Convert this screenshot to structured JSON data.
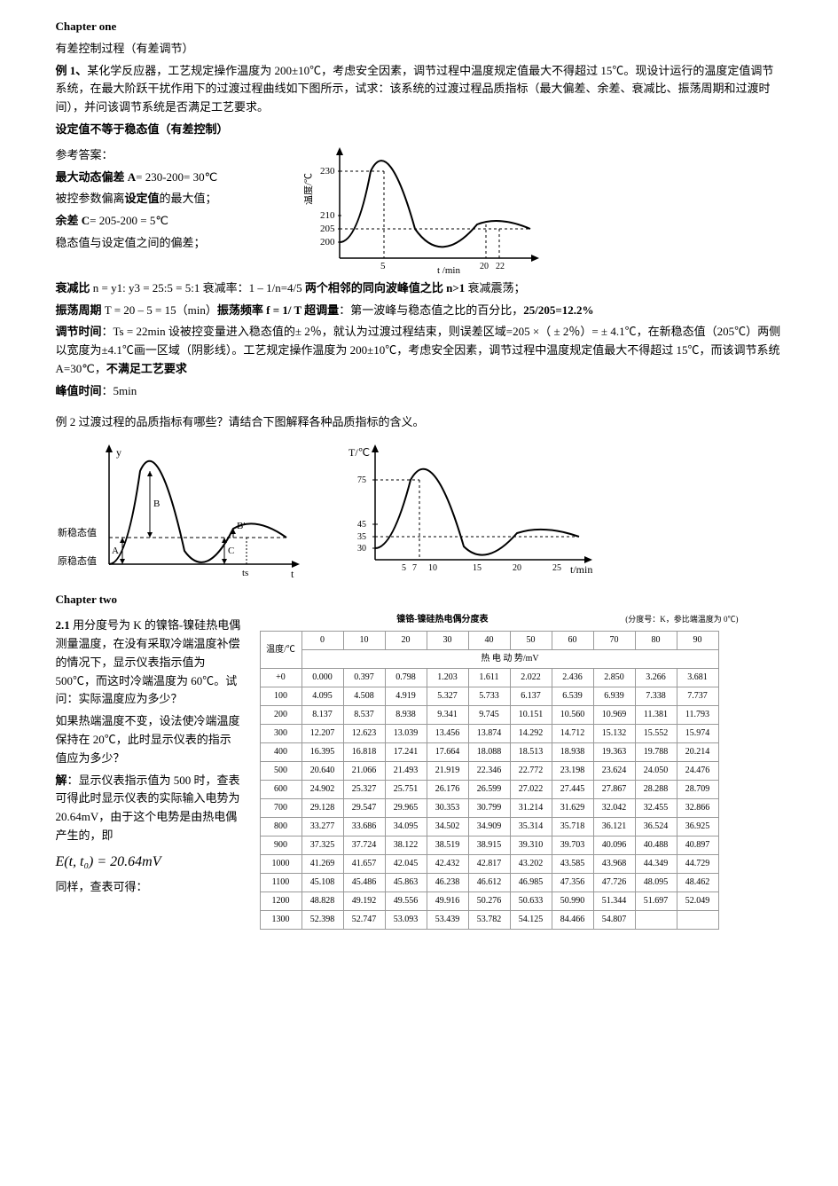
{
  "ch1": {
    "title": "Chapter one",
    "sub": "有差控制过程（有差调节）",
    "ex1_label": "例 1、",
    "ex1_body": "某化学反应器，工艺规定操作温度为 200±10℃，考虑安全因素，调节过程中温度规定值最大不得超过 15℃。现设计运行的温度定值调节系统，在最大阶跃干扰作用下的过渡过程曲线如下图所示，试求：该系统的过渡过程品质指标（最大偏差、余差、衰减比、振荡周期和过渡时间），并问该调节系统是否满足工艺要求。",
    "setpoint_line": "设定值不等于稳态值（有差控制）",
    "ref_ans": "参考答案：",
    "A_label": "最大动态偏差 A",
    "A_body": "= 230-200= 30℃",
    "A_desc": "被控参数偏离",
    "A_desc_bold": "设定值",
    "A_desc_tail": "的最大值；",
    "C_label": "余差 C",
    "C_body": "= 205-200 = 5℃",
    "C_desc": "稳态值与设定值之间的偏差；",
    "decay_label": "衰减比",
    "decay_body": " n = y1: y3 = 25:5 = 5:1      衰减率：1 – 1/n=4/5   ",
    "decay_bold": "两个相邻的同向波峰值之比  n>1",
    "decay_tail": "  衰减震荡；",
    "period_label": "振荡周期",
    "period_body": " T = 20 – 5 = 15（min）",
    "freq_label": "振荡频率 f = 1/ T   ",
    "overshoot_label": "超调量",
    "overshoot_body": "：第一波峰与稳态值之比的百分比，",
    "overshoot_val": "25/205=12.2%",
    "ts_label": "调节时间",
    "ts_body": "：Ts = 22min    设被控变量进入稳态值的± 2％，就认为过渡过程结束，则误差区域=205 ×（ ± 2％）= ± 4.1℃，在新稳态值（205℃）两侧以宽度为±4.1℃画一区域（阴影线）。工艺规定操作温度为 200±10℃，考虑安全因素，调节过程中温度规定值最大不得超过 15℃，而该调节系统 A=30℃，",
    "ts_bold": "不满足工艺要求",
    "peak_label": "峰值时间",
    "peak_body": "：5min",
    "ex2": "例 2 过渡过程的品质指标有哪些？请结合下图解释各种品质指标的含义。"
  },
  "chart1": {
    "y_ticks": [
      200,
      205,
      210,
      230
    ],
    "x_ticks": [
      5,
      20,
      22
    ],
    "xlabel": "t /min",
    "ylabel": "温度/℃",
    "curve_color": "#000",
    "axis_color": "#000",
    "dash_color": "#000",
    "bg": "#fff"
  },
  "chart2a": {
    "label_y": "y",
    "label_t": "t",
    "label_A": "A",
    "label_B": "B",
    "label_Bp": "B'",
    "label_C": "C",
    "label_ts": "ts",
    "label_new": "新稳态值",
    "label_old": "原稳态值",
    "axis_color": "#000"
  },
  "chart2b": {
    "ylabel": "T/℃",
    "xlabel": "t/min",
    "yticks": [
      30,
      35,
      45,
      75
    ],
    "xticks": [
      5,
      7,
      10,
      15,
      20,
      25
    ],
    "axis_color": "#000"
  },
  "ch2": {
    "title": "Chapter two",
    "q_label": "2.1",
    "q_body": " 用分度号为 K 的镍铬-镍硅热电偶测量温度，在没有采取冷端温度补偿的情况下，显示仪表指示值为 500℃，而这时冷端温度为 60℃。试问：实际温度应为多少？",
    "q2": "如果热端温度不变，设法使冷端温度保持在 20℃，此时显示仪表的指示值应为多少？",
    "sol_label": "解",
    "sol_body": "：显示仪表指示值为 500 时，查表可得此时显示仪表的实际输入电势为 20.64mV，由于这个电势是由热电偶产生的，即",
    "formula": "E(t, t₀) = 20.64mV",
    "sol_tail": "同样，查表可得："
  },
  "table": {
    "title": "镍铬-镍硅热电偶分度表",
    "note": "(分度号：K，参比端温度为 0℃)",
    "header_temp": "温度/℃",
    "header_emf": "热 电 动 势/mV",
    "cols": [
      "0",
      "10",
      "20",
      "30",
      "40",
      "50",
      "60",
      "70",
      "80",
      "90"
    ],
    "rows": [
      {
        "t": "+0",
        "v": [
          "0.000",
          "0.397",
          "0.798",
          "1.203",
          "1.611",
          "2.022",
          "2.436",
          "2.850",
          "3.266",
          "3.681"
        ]
      },
      {
        "t": "100",
        "v": [
          "4.095",
          "4.508",
          "4.919",
          "5.327",
          "5.733",
          "6.137",
          "6.539",
          "6.939",
          "7.338",
          "7.737"
        ]
      },
      {
        "t": "200",
        "v": [
          "8.137",
          "8.537",
          "8.938",
          "9.341",
          "9.745",
          "10.151",
          "10.560",
          "10.969",
          "11.381",
          "11.793"
        ]
      },
      {
        "t": "300",
        "v": [
          "12.207",
          "12.623",
          "13.039",
          "13.456",
          "13.874",
          "14.292",
          "14.712",
          "15.132",
          "15.552",
          "15.974"
        ]
      },
      {
        "t": "400",
        "v": [
          "16.395",
          "16.818",
          "17.241",
          "17.664",
          "18.088",
          "18.513",
          "18.938",
          "19.363",
          "19.788",
          "20.214"
        ]
      },
      {
        "t": "500",
        "v": [
          "20.640",
          "21.066",
          "21.493",
          "21.919",
          "22.346",
          "22.772",
          "23.198",
          "23.624",
          "24.050",
          "24.476"
        ]
      },
      {
        "t": "600",
        "v": [
          "24.902",
          "25.327",
          "25.751",
          "26.176",
          "26.599",
          "27.022",
          "27.445",
          "27.867",
          "28.288",
          "28.709"
        ]
      },
      {
        "t": "700",
        "v": [
          "29.128",
          "29.547",
          "29.965",
          "30.353",
          "30.799",
          "31.214",
          "31.629",
          "32.042",
          "32.455",
          "32.866"
        ]
      },
      {
        "t": "800",
        "v": [
          "33.277",
          "33.686",
          "34.095",
          "34.502",
          "34.909",
          "35.314",
          "35.718",
          "36.121",
          "36.524",
          "36.925"
        ]
      },
      {
        "t": "900",
        "v": [
          "37.325",
          "37.724",
          "38.122",
          "38.519",
          "38.915",
          "39.310",
          "39.703",
          "40.096",
          "40.488",
          "40.897"
        ]
      },
      {
        "t": "1000",
        "v": [
          "41.269",
          "41.657",
          "42.045",
          "42.432",
          "42.817",
          "43.202",
          "43.585",
          "43.968",
          "44.349",
          "44.729"
        ]
      },
      {
        "t": "1100",
        "v": [
          "45.108",
          "45.486",
          "45.863",
          "46.238",
          "46.612",
          "46.985",
          "47.356",
          "47.726",
          "48.095",
          "48.462"
        ]
      },
      {
        "t": "1200",
        "v": [
          "48.828",
          "49.192",
          "49.556",
          "49.916",
          "50.276",
          "50.633",
          "50.990",
          "51.344",
          "51.697",
          "52.049"
        ]
      },
      {
        "t": "1300",
        "v": [
          "52.398",
          "52.747",
          "53.093",
          "53.439",
          "53.782",
          "54.125",
          "84.466",
          "54.807",
          "",
          ""
        ]
      }
    ]
  }
}
